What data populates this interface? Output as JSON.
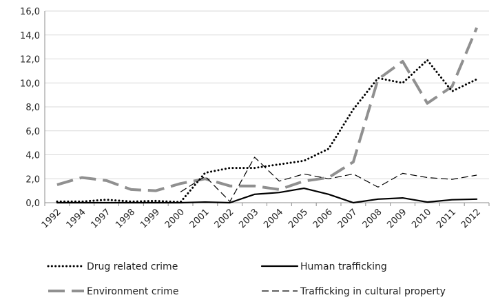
{
  "chart_data": {
    "type": "line",
    "title": "",
    "xlabel": "",
    "ylabel": "",
    "ylim": [
      0,
      16
    ],
    "y_ticks": [
      "0,0",
      "2,0",
      "4,0",
      "6,0",
      "8,0",
      "10,0",
      "12,0",
      "14,0",
      "16,0"
    ],
    "grid": "horizontal",
    "legend_position": "bottom",
    "categories": [
      "1992",
      "1994",
      "1997",
      "1998",
      "1999",
      "2000",
      "2001",
      "2002",
      "2003",
      "2004",
      "2005",
      "2006",
      "2007",
      "2008",
      "2009",
      "2010",
      "2011",
      "2012"
    ],
    "series": [
      {
        "name": "Drug related crime",
        "style": "dotted",
        "color": "#000000",
        "values": [
          0.1,
          0.1,
          0.25,
          0.1,
          0.15,
          0.05,
          2.5,
          2.9,
          2.9,
          3.2,
          3.5,
          4.5,
          7.8,
          10.4,
          10.0,
          11.9,
          9.3,
          10.3
        ]
      },
      {
        "name": "Human trafficking",
        "style": "solid",
        "color": "#000000",
        "values": [
          0.0,
          0.0,
          0.0,
          0.0,
          0.0,
          0.0,
          0.05,
          0.0,
          0.7,
          0.85,
          1.2,
          0.7,
          0.0,
          0.3,
          0.4,
          0.05,
          0.25,
          0.3
        ]
      },
      {
        "name": "Environment crime",
        "style": "long-dash",
        "color": "#909090",
        "values": [
          1.5,
          2.1,
          1.85,
          1.1,
          1.0,
          1.6,
          2.0,
          1.4,
          1.4,
          1.1,
          1.8,
          2.1,
          3.4,
          10.3,
          11.8,
          8.3,
          9.7,
          14.6
        ]
      },
      {
        "name": "Trafficking in cultural property",
        "style": "dashed",
        "color": "#000000",
        "values": [
          null,
          null,
          null,
          null,
          null,
          0.9,
          2.2,
          0.1,
          3.8,
          1.8,
          2.4,
          2.0,
          2.4,
          1.3,
          2.45,
          2.1,
          1.95,
          2.3
        ]
      }
    ]
  }
}
